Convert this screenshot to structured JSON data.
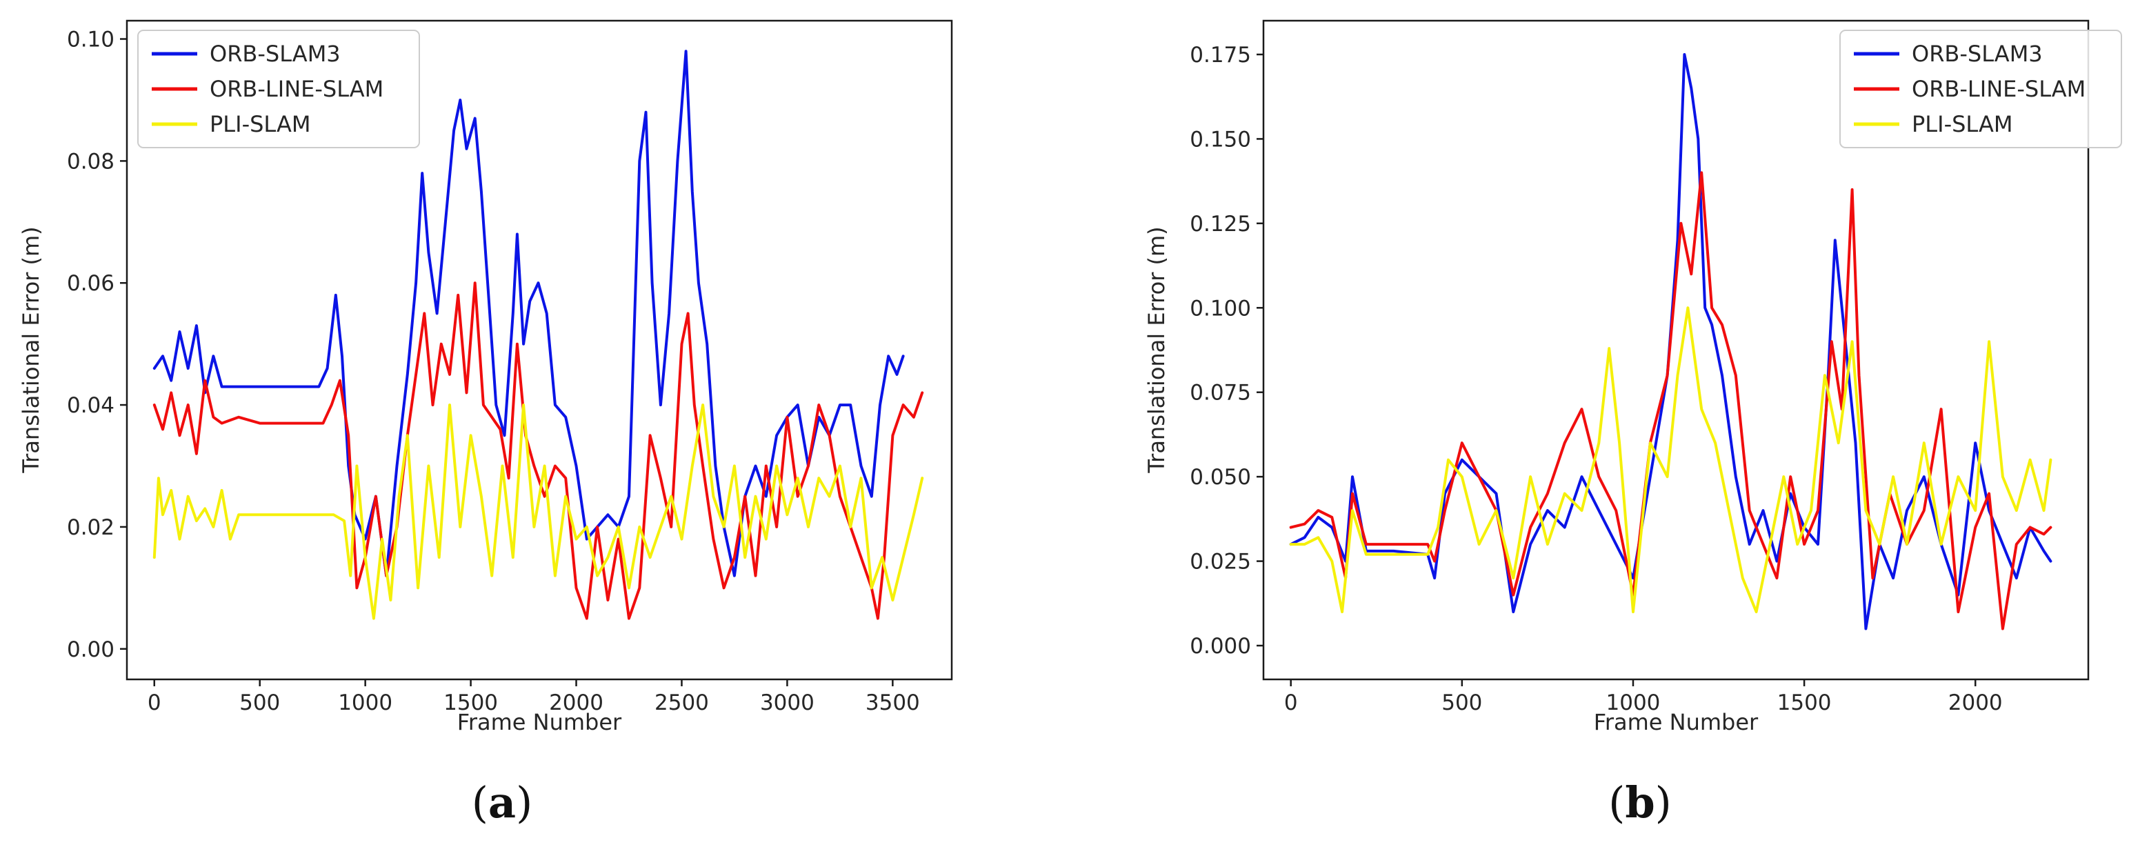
{
  "chart_data": [
    {
      "type": "line",
      "caption": "(a)",
      "caption_letter": "a",
      "xlabel": "Frame Number",
      "ylabel": "Translational Error (m)",
      "xlim": [
        -130,
        3780
      ],
      "ylim": [
        -0.005,
        0.103
      ],
      "xticks": [
        0,
        500,
        1000,
        1500,
        2000,
        2500,
        3000,
        3500
      ],
      "xtick_labels": [
        "0",
        "500",
        "1000",
        "1500",
        "2000",
        "2500",
        "3000",
        "3500"
      ],
      "yticks": [
        0.0,
        0.02,
        0.04,
        0.06,
        0.08,
        0.1
      ],
      "ytick_labels": [
        "0.00",
        "0.02",
        "0.04",
        "0.06",
        "0.08",
        "0.10"
      ],
      "legend_position": "upper-left",
      "series": [
        {
          "name": "ORB-SLAM3",
          "color": "#0a14e6",
          "x": [
            0,
            40,
            80,
            120,
            160,
            200,
            240,
            280,
            320,
            400,
            500,
            600,
            700,
            780,
            820,
            860,
            890,
            920,
            950,
            1000,
            1050,
            1100,
            1150,
            1200,
            1240,
            1270,
            1300,
            1340,
            1380,
            1420,
            1450,
            1480,
            1520,
            1550,
            1580,
            1620,
            1660,
            1700,
            1720,
            1750,
            1780,
            1820,
            1860,
            1900,
            1950,
            2000,
            2050,
            2100,
            2150,
            2200,
            2250,
            2300,
            2330,
            2360,
            2400,
            2440,
            2480,
            2520,
            2550,
            2580,
            2620,
            2660,
            2700,
            2750,
            2800,
            2850,
            2900,
            2950,
            3000,
            3050,
            3100,
            3150,
            3200,
            3250,
            3300,
            3350,
            3400,
            3440,
            3480,
            3520,
            3550
          ],
          "y": [
            0.046,
            0.048,
            0.044,
            0.052,
            0.046,
            0.053,
            0.042,
            0.048,
            0.043,
            0.043,
            0.043,
            0.043,
            0.043,
            0.043,
            0.046,
            0.058,
            0.048,
            0.03,
            0.022,
            0.018,
            0.025,
            0.012,
            0.03,
            0.045,
            0.06,
            0.078,
            0.065,
            0.055,
            0.07,
            0.085,
            0.09,
            0.082,
            0.087,
            0.075,
            0.06,
            0.04,
            0.035,
            0.055,
            0.068,
            0.05,
            0.057,
            0.06,
            0.055,
            0.04,
            0.038,
            0.03,
            0.018,
            0.02,
            0.022,
            0.02,
            0.025,
            0.08,
            0.088,
            0.06,
            0.04,
            0.055,
            0.08,
            0.098,
            0.075,
            0.06,
            0.05,
            0.03,
            0.02,
            0.012,
            0.025,
            0.03,
            0.025,
            0.035,
            0.038,
            0.04,
            0.03,
            0.038,
            0.035,
            0.04,
            0.04,
            0.03,
            0.025,
            0.04,
            0.048,
            0.045,
            0.048
          ]
        },
        {
          "name": "ORB-LINE-SLAM",
          "color": "#f00d0d",
          "x": [
            0,
            40,
            80,
            120,
            160,
            200,
            240,
            280,
            320,
            400,
            500,
            600,
            700,
            800,
            840,
            880,
            920,
            960,
            1000,
            1050,
            1100,
            1150,
            1200,
            1240,
            1280,
            1320,
            1360,
            1400,
            1440,
            1480,
            1520,
            1560,
            1600,
            1640,
            1680,
            1720,
            1760,
            1800,
            1850,
            1900,
            1950,
            2000,
            2050,
            2100,
            2150,
            2200,
            2250,
            2300,
            2350,
            2400,
            2450,
            2500,
            2530,
            2560,
            2600,
            2650,
            2700,
            2750,
            2800,
            2850,
            2900,
            2950,
            3000,
            3050,
            3100,
            3150,
            3200,
            3250,
            3300,
            3350,
            3400,
            3430,
            3460,
            3500,
            3550,
            3600,
            3640
          ],
          "y": [
            0.04,
            0.036,
            0.042,
            0.035,
            0.04,
            0.032,
            0.044,
            0.038,
            0.037,
            0.038,
            0.037,
            0.037,
            0.037,
            0.037,
            0.04,
            0.044,
            0.035,
            0.01,
            0.015,
            0.025,
            0.012,
            0.02,
            0.035,
            0.045,
            0.055,
            0.04,
            0.05,
            0.045,
            0.058,
            0.042,
            0.06,
            0.04,
            0.038,
            0.036,
            0.028,
            0.05,
            0.035,
            0.03,
            0.025,
            0.03,
            0.028,
            0.01,
            0.005,
            0.02,
            0.008,
            0.018,
            0.005,
            0.01,
            0.035,
            0.028,
            0.02,
            0.05,
            0.055,
            0.04,
            0.03,
            0.018,
            0.01,
            0.015,
            0.025,
            0.012,
            0.03,
            0.02,
            0.038,
            0.025,
            0.03,
            0.04,
            0.035,
            0.025,
            0.02,
            0.015,
            0.01,
            0.005,
            0.015,
            0.035,
            0.04,
            0.038,
            0.042
          ]
        },
        {
          "name": "PLI-SLAM",
          "color": "#f5f00a",
          "x": [
            0,
            20,
            40,
            80,
            120,
            160,
            200,
            240,
            280,
            320,
            360,
            400,
            500,
            600,
            700,
            800,
            850,
            900,
            930,
            960,
            1000,
            1040,
            1080,
            1120,
            1160,
            1200,
            1250,
            1300,
            1350,
            1400,
            1450,
            1500,
            1550,
            1600,
            1650,
            1700,
            1750,
            1800,
            1850,
            1900,
            1950,
            2000,
            2050,
            2100,
            2150,
            2200,
            2250,
            2300,
            2350,
            2400,
            2450,
            2500,
            2550,
            2600,
            2650,
            2700,
            2750,
            2800,
            2850,
            2900,
            2950,
            3000,
            3050,
            3100,
            3150,
            3200,
            3250,
            3300,
            3350,
            3400,
            3450,
            3500,
            3550,
            3600,
            3640
          ],
          "y": [
            0.015,
            0.028,
            0.022,
            0.026,
            0.018,
            0.025,
            0.021,
            0.023,
            0.02,
            0.026,
            0.018,
            0.022,
            0.022,
            0.022,
            0.022,
            0.022,
            0.022,
            0.021,
            0.012,
            0.03,
            0.015,
            0.005,
            0.018,
            0.008,
            0.025,
            0.035,
            0.01,
            0.03,
            0.015,
            0.04,
            0.02,
            0.035,
            0.025,
            0.012,
            0.03,
            0.015,
            0.04,
            0.02,
            0.03,
            0.012,
            0.025,
            0.018,
            0.02,
            0.012,
            0.015,
            0.02,
            0.01,
            0.02,
            0.015,
            0.02,
            0.025,
            0.018,
            0.03,
            0.04,
            0.025,
            0.02,
            0.03,
            0.015,
            0.025,
            0.018,
            0.03,
            0.022,
            0.028,
            0.02,
            0.028,
            0.025,
            0.03,
            0.02,
            0.028,
            0.01,
            0.015,
            0.008,
            0.015,
            0.022,
            0.028
          ]
        }
      ]
    },
    {
      "type": "line",
      "caption": "(b)",
      "caption_letter": "b",
      "xlabel": "Frame Number",
      "ylabel": "Translational Error (m)",
      "xlim": [
        -80,
        2330
      ],
      "ylim": [
        -0.01,
        0.185
      ],
      "xticks": [
        0,
        500,
        1000,
        1500,
        2000
      ],
      "xtick_labels": [
        "0",
        "500",
        "1000",
        "1500",
        "2000"
      ],
      "yticks": [
        0.0,
        0.025,
        0.05,
        0.075,
        0.1,
        0.125,
        0.15,
        0.175
      ],
      "ytick_labels": [
        "0.000",
        "0.025",
        "0.050",
        "0.075",
        "0.100",
        "0.125",
        "0.150",
        "0.175"
      ],
      "legend_position": "upper-right",
      "series": [
        {
          "name": "ORB-SLAM3",
          "color": "#0a14e6",
          "x": [
            0,
            40,
            80,
            120,
            160,
            180,
            220,
            300,
            400,
            420,
            450,
            500,
            550,
            600,
            650,
            700,
            750,
            800,
            850,
            900,
            950,
            1000,
            1050,
            1100,
            1130,
            1150,
            1170,
            1190,
            1210,
            1230,
            1260,
            1300,
            1340,
            1380,
            1420,
            1460,
            1500,
            1540,
            1570,
            1590,
            1620,
            1650,
            1680,
            1720,
            1760,
            1800,
            1850,
            1900,
            1950,
            2000,
            2040,
            2080,
            2120,
            2160,
            2200,
            2220
          ],
          "y": [
            0.03,
            0.032,
            0.038,
            0.035,
            0.025,
            0.05,
            0.028,
            0.028,
            0.027,
            0.02,
            0.045,
            0.055,
            0.05,
            0.045,
            0.01,
            0.03,
            0.04,
            0.035,
            0.05,
            0.04,
            0.03,
            0.02,
            0.05,
            0.08,
            0.12,
            0.175,
            0.165,
            0.15,
            0.1,
            0.095,
            0.08,
            0.05,
            0.03,
            0.04,
            0.025,
            0.045,
            0.035,
            0.03,
            0.08,
            0.12,
            0.09,
            0.06,
            0.005,
            0.03,
            0.02,
            0.04,
            0.05,
            0.03,
            0.015,
            0.06,
            0.04,
            0.03,
            0.02,
            0.035,
            0.028,
            0.025
          ]
        },
        {
          "name": "ORB-LINE-SLAM",
          "color": "#f00d0d",
          "x": [
            0,
            40,
            80,
            120,
            160,
            180,
            220,
            300,
            400,
            420,
            450,
            500,
            550,
            600,
            650,
            700,
            750,
            800,
            850,
            900,
            950,
            1000,
            1050,
            1100,
            1140,
            1170,
            1200,
            1230,
            1260,
            1300,
            1340,
            1380,
            1420,
            1460,
            1500,
            1540,
            1580,
            1610,
            1640,
            1660,
            1700,
            1750,
            1800,
            1850,
            1900,
            1950,
            2000,
            2040,
            2080,
            2120,
            2160,
            2200,
            2220
          ],
          "y": [
            0.035,
            0.036,
            0.04,
            0.038,
            0.02,
            0.045,
            0.03,
            0.03,
            0.03,
            0.025,
            0.04,
            0.06,
            0.05,
            0.04,
            0.015,
            0.035,
            0.045,
            0.06,
            0.07,
            0.05,
            0.04,
            0.015,
            0.06,
            0.08,
            0.125,
            0.11,
            0.14,
            0.1,
            0.095,
            0.08,
            0.04,
            0.03,
            0.02,
            0.05,
            0.03,
            0.04,
            0.09,
            0.07,
            0.135,
            0.08,
            0.02,
            0.045,
            0.03,
            0.04,
            0.07,
            0.01,
            0.035,
            0.045,
            0.005,
            0.03,
            0.035,
            0.033,
            0.035
          ]
        },
        {
          "name": "PLI-SLAM",
          "color": "#f5f00a",
          "x": [
            0,
            40,
            80,
            120,
            150,
            180,
            220,
            300,
            400,
            430,
            460,
            500,
            550,
            600,
            650,
            700,
            750,
            800,
            850,
            900,
            930,
            960,
            1000,
            1050,
            1100,
            1130,
            1160,
            1200,
            1240,
            1280,
            1320,
            1360,
            1400,
            1440,
            1480,
            1520,
            1560,
            1600,
            1640,
            1680,
            1720,
            1760,
            1800,
            1850,
            1900,
            1950,
            2000,
            2040,
            2080,
            2120,
            2160,
            2200,
            2220
          ],
          "y": [
            0.03,
            0.03,
            0.032,
            0.025,
            0.01,
            0.04,
            0.027,
            0.027,
            0.027,
            0.035,
            0.055,
            0.05,
            0.03,
            0.04,
            0.02,
            0.05,
            0.03,
            0.045,
            0.04,
            0.06,
            0.088,
            0.06,
            0.01,
            0.06,
            0.05,
            0.08,
            0.1,
            0.07,
            0.06,
            0.04,
            0.02,
            0.01,
            0.03,
            0.05,
            0.03,
            0.04,
            0.08,
            0.06,
            0.09,
            0.04,
            0.03,
            0.05,
            0.03,
            0.06,
            0.03,
            0.05,
            0.04,
            0.09,
            0.05,
            0.04,
            0.055,
            0.04,
            0.055
          ]
        }
      ]
    }
  ]
}
